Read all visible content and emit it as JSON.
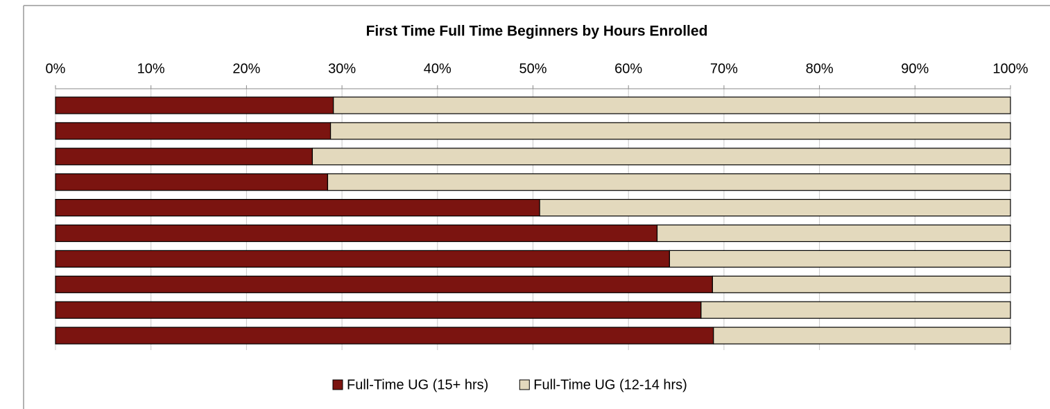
{
  "chart_data": {
    "type": "bar",
    "orientation": "horizontal",
    "stacked": true,
    "title": "First Time Full Time Beginners  by Hours Enrolled",
    "categories": [
      null,
      null,
      null,
      null,
      null,
      null,
      null,
      null,
      null,
      null
    ],
    "series": [
      {
        "name": "Full-Time UG (15+ hrs)",
        "color": "#7b1410",
        "values": [
          29.1,
          28.8,
          26.9,
          28.5,
          50.7,
          63.0,
          64.3,
          68.8,
          67.6,
          68.9
        ]
      },
      {
        "name": "Full-Time UG  (12-14 hrs)",
        "color": "#e3d9bd",
        "values": [
          70.9,
          71.2,
          73.1,
          71.5,
          49.3,
          37.0,
          35.7,
          31.2,
          32.4,
          31.1
        ]
      }
    ],
    "xlim": [
      0,
      100
    ],
    "xticks": [
      {
        "value": 0,
        "label": "0%"
      },
      {
        "value": 10,
        "label": "10%"
      },
      {
        "value": 20,
        "label": "20%"
      },
      {
        "value": 30,
        "label": "30%"
      },
      {
        "value": 40,
        "label": "40%"
      },
      {
        "value": 50,
        "label": "50%"
      },
      {
        "value": 60,
        "label": "60%"
      },
      {
        "value": 70,
        "label": "70%"
      },
      {
        "value": 80,
        "label": "80%"
      },
      {
        "value": 90,
        "label": "90%"
      },
      {
        "value": 100,
        "label": "100%"
      }
    ],
    "grid": true,
    "legend": "bottom"
  }
}
